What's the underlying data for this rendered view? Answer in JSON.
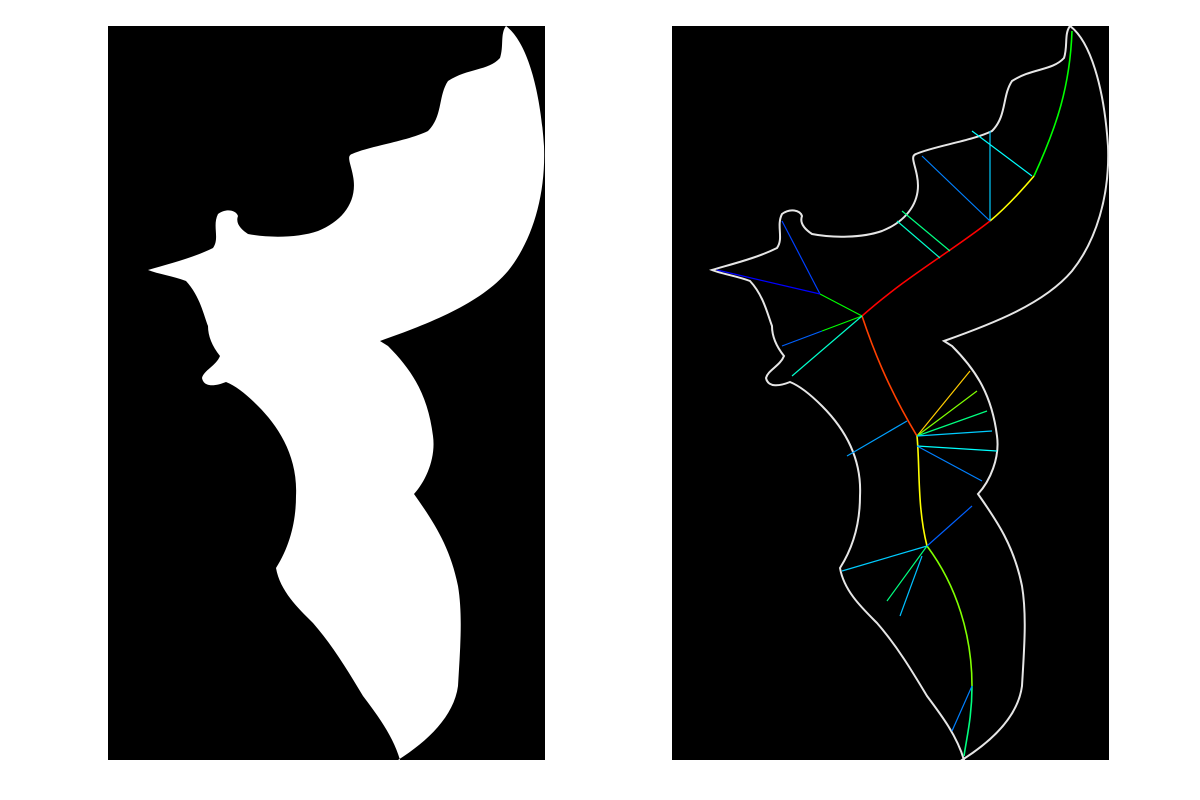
{
  "figure": {
    "background_color": "#ffffff",
    "panels": [
      {
        "id": "binary-mask",
        "background_color": "#000000",
        "shape_fill_color": "#ffffff"
      },
      {
        "id": "medial-axis-skeleton",
        "background_color": "#000000",
        "contour_color": "#ffffff",
        "skeleton_colormap": "jet",
        "colormap_stops": [
          "#00008b",
          "#0000ff",
          "#00ffff",
          "#00ff00",
          "#ffff00",
          "#ff0000"
        ]
      }
    ]
  }
}
